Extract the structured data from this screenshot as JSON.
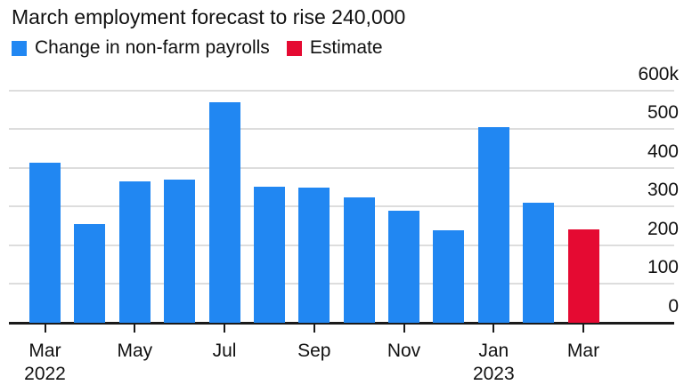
{
  "title": "March employment forecast to rise 240,000",
  "legend": {
    "items": [
      {
        "label": "Change in non-farm payrolls",
        "color": "#2187f2"
      },
      {
        "label": "Estimate",
        "color": "#e50a32"
      }
    ]
  },
  "chart_data": {
    "type": "bar",
    "title": "March employment forecast to rise 240,000",
    "unit": "thousands of jobs (k)",
    "categories": [
      "Mar 2022",
      "Apr 2022",
      "May 2022",
      "Jun 2022",
      "Jul 2022",
      "Aug 2022",
      "Sep 2022",
      "Oct 2022",
      "Nov 2022",
      "Dec 2022",
      "Jan 2023",
      "Feb 2023",
      "Mar 2023"
    ],
    "series": [
      {
        "name": "Change in non-farm payrolls",
        "values": [
          414,
          254,
          364,
          370,
          568,
          352,
          350,
          324,
          290,
          239,
          504,
          311,
          240
        ]
      }
    ],
    "estimate_index": 12,
    "ylim": [
      0,
      600
    ],
    "yticks": [
      0,
      100,
      200,
      300,
      400,
      500,
      600
    ],
    "ytick_labels": [
      "0",
      "100",
      "200",
      "300",
      "400",
      "500",
      "600k"
    ],
    "xticks": [
      {
        "index": 0,
        "month": "Mar",
        "year": "2022"
      },
      {
        "index": 2,
        "month": "May",
        "year": ""
      },
      {
        "index": 4,
        "month": "Jul",
        "year": ""
      },
      {
        "index": 6,
        "month": "Sep",
        "year": ""
      },
      {
        "index": 8,
        "month": "Nov",
        "year": ""
      },
      {
        "index": 10,
        "month": "Jan",
        "year": "2023"
      },
      {
        "index": 12,
        "month": "Mar",
        "year": ""
      }
    ],
    "grid": true,
    "legend_position": "top-left",
    "colors": {
      "default": "#2187f2",
      "estimate": "#e50a32",
      "gridline": "#dddddd",
      "axis": "#1a1a1a"
    }
  }
}
